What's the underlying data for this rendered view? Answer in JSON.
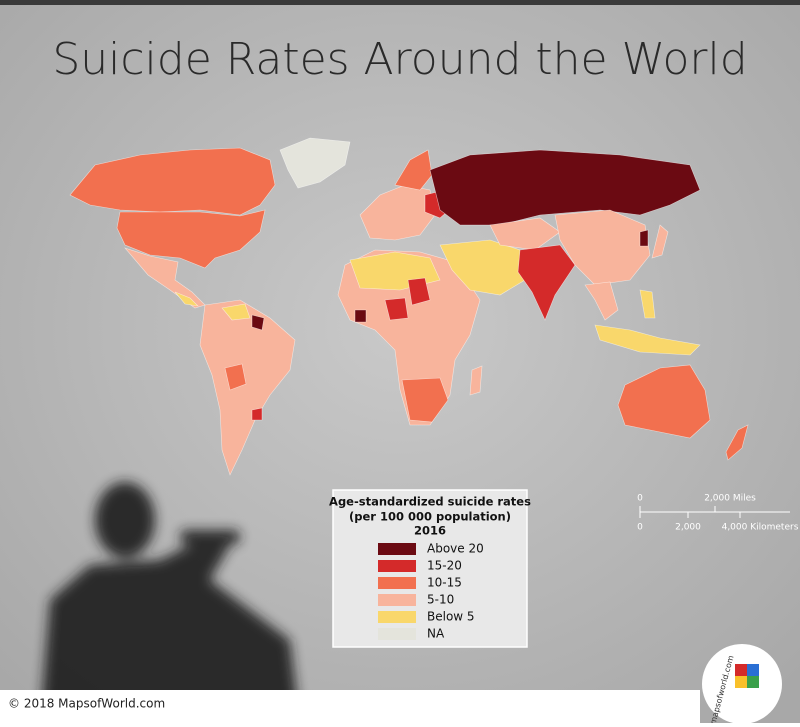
{
  "title": "Suicide Rates Around the World",
  "legend": {
    "title": [
      "Age-standardized suicide rates",
      "(per 100 000 population)",
      "2016"
    ],
    "items": [
      {
        "label": "Above 20",
        "color": "#6b0a12"
      },
      {
        "label": "15-20",
        "color": "#d42a2a"
      },
      {
        "label": "10-15",
        "color": "#f2704f"
      },
      {
        "label": "5-10",
        "color": "#f8b49c"
      },
      {
        "label": "Below 5",
        "color": "#f9d76b"
      },
      {
        "label": "NA",
        "color": "#e4e4dc"
      }
    ]
  },
  "scale": {
    "miles": [
      "0",
      "2,000 Miles"
    ],
    "km": [
      "0",
      "2,000",
      "4,000 Kilometers"
    ]
  },
  "copyright": "© 2018 MapsofWorld.com",
  "logo": "mapsofworld.com"
}
